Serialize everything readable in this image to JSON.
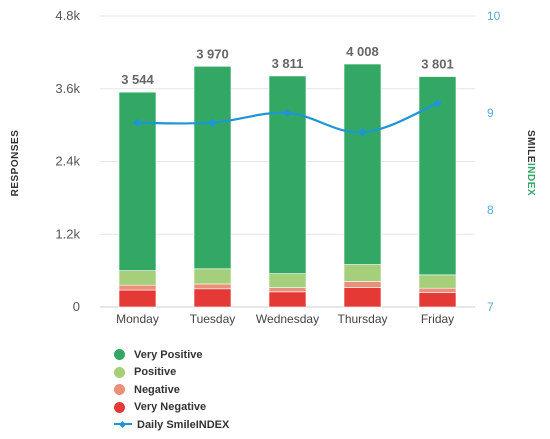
{
  "chart_data": {
    "type": "bar",
    "stacked": true,
    "categories": [
      "Monday",
      "Tuesday",
      "Wednesday",
      "Thursday",
      "Friday"
    ],
    "series": [
      {
        "name": "Very Negative",
        "color": "#e53935",
        "values": [
          280,
          300,
          250,
          320,
          240
        ]
      },
      {
        "name": "Negative",
        "color": "#e8907a",
        "values": [
          80,
          80,
          70,
          100,
          70
        ]
      },
      {
        "name": "Positive",
        "color": "#a5cf7a",
        "values": [
          240,
          250,
          230,
          280,
          220
        ]
      },
      {
        "name": "Very Positive",
        "color": "#33a865",
        "values": [
          2944,
          3340,
          3261,
          3308,
          3271
        ]
      }
    ],
    "totals": [
      "3 544",
      "3 970",
      "3 811",
      "4 008",
      "3 801"
    ],
    "totals_values": [
      3544,
      3970,
      3811,
      4008,
      3801
    ],
    "line": {
      "name": "Daily SmileINDEX",
      "color": "#1e96d6",
      "axis": "right",
      "values": [
        8.9,
        8.9,
        9.0,
        8.8,
        9.1
      ]
    },
    "ylabel": "RESPONSES",
    "y2label_part1": "SMILE",
    "y2label_part2": "INDEX",
    "ylim": [
      0,
      4800
    ],
    "yticks": [
      "0",
      "1.2k",
      "2.4k",
      "3.6k",
      "4.8k"
    ],
    "ytick_values": [
      0,
      1200,
      2400,
      3600,
      4800
    ],
    "y2lim": [
      7,
      10
    ],
    "y2ticks": [
      "7",
      "8",
      "9",
      "10"
    ],
    "y2tick_values": [
      7,
      8,
      9,
      10
    ],
    "grid": true,
    "legend_position": "bottom-left"
  },
  "legend": [
    {
      "label": "Very Positive",
      "color": "#33a865",
      "kind": "dot"
    },
    {
      "label": "Positive",
      "color": "#a5cf7a",
      "kind": "dot"
    },
    {
      "label": "Negative",
      "color": "#e8907a",
      "kind": "dot"
    },
    {
      "label": "Very Negative",
      "color": "#e53935",
      "kind": "dot"
    },
    {
      "label": "Daily SmileINDEX",
      "color": "#1e96d6",
      "kind": "line"
    }
  ],
  "colors": {
    "y2label_part1": "#333333",
    "y2label_part2": "#33a865",
    "ylabel": "#333333"
  }
}
